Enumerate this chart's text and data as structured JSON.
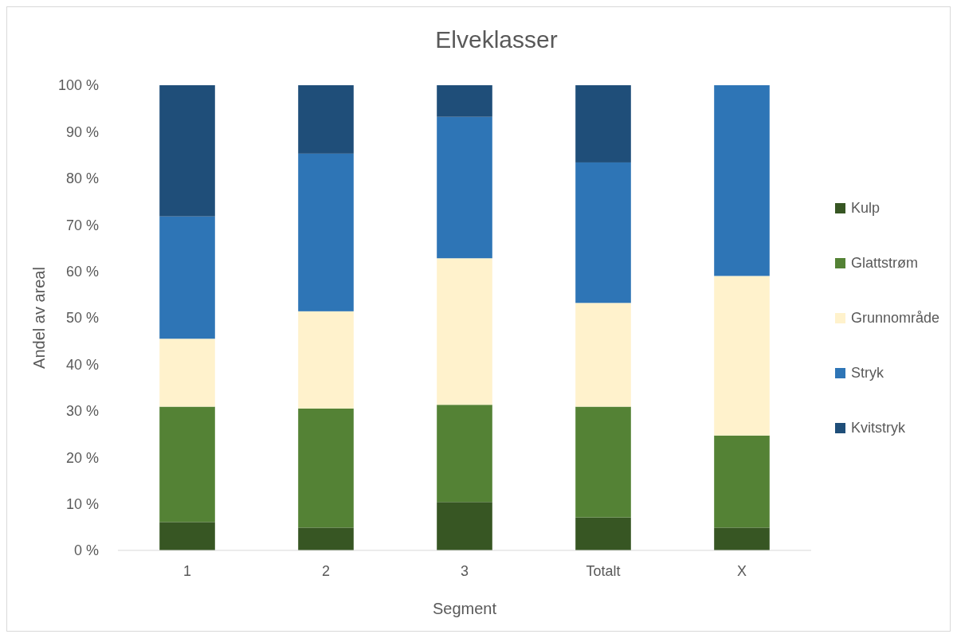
{
  "chart_data": {
    "type": "bar",
    "title": "Elveklasser",
    "xlabel": "Segment",
    "ylabel": "Andel av areal",
    "stacked": true,
    "legend": "right",
    "grid": false,
    "categories": [
      "1",
      "2",
      "3",
      "Totalt",
      "X"
    ],
    "series": [
      {
        "name": "Kulp",
        "color": "#375623",
        "values": [
          6.1,
          4.9,
          10.4,
          7.1,
          4.9
        ]
      },
      {
        "name": "Glattstrøm",
        "color": "#548235",
        "values": [
          24.8,
          25.6,
          20.9,
          23.8,
          19.8
        ]
      },
      {
        "name": "Grunnområde",
        "color": "#fff2cc",
        "values": [
          14.6,
          20.9,
          31.5,
          22.3,
          34.3
        ]
      },
      {
        "name": "Stryk",
        "color": "#2e75b6",
        "values": [
          26.3,
          33.9,
          30.4,
          30.2,
          41.0
        ]
      },
      {
        "name": "Kvitstryk",
        "color": "#1f4e79",
        "values": [
          28.2,
          14.7,
          6.8,
          16.6,
          0
        ]
      }
    ],
    "ylim": [
      0,
      100
    ],
    "yticks": [
      {
        "value": 0,
        "label": "0 %"
      },
      {
        "value": 10,
        "label": "10 %"
      },
      {
        "value": 20,
        "label": "20 %"
      },
      {
        "value": 30,
        "label": "30 %"
      },
      {
        "value": 40,
        "label": "40 %"
      },
      {
        "value": 50,
        "label": "50 %"
      },
      {
        "value": 60,
        "label": "60 %"
      },
      {
        "value": 70,
        "label": "70 %"
      },
      {
        "value": 80,
        "label": "80 %"
      },
      {
        "value": 90,
        "label": "90 %"
      },
      {
        "value": 100,
        "label": "100 %"
      }
    ]
  }
}
